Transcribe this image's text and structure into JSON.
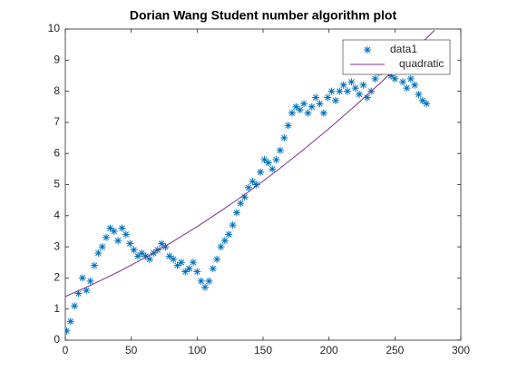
{
  "chart_data": {
    "type": "scatter",
    "title": "Dorian Wang Student number algorithm plot",
    "xlim": [
      0,
      300
    ],
    "xticks": [
      0,
      50,
      100,
      150,
      200,
      250,
      300
    ],
    "ylim": [
      0,
      10
    ],
    "yticks": [
      0,
      1,
      2,
      3,
      4,
      5,
      6,
      7,
      8,
      9,
      10
    ],
    "legend": "top-right",
    "series": [
      {
        "name": "data1",
        "color": "#0072bd",
        "marker": "asterisk",
        "x": [
          1,
          4,
          7,
          10,
          13,
          16,
          19,
          22,
          25,
          28,
          31,
          34,
          37,
          40,
          43,
          46,
          49,
          52,
          55,
          58,
          61,
          64,
          67,
          70,
          73,
          76,
          79,
          82,
          85,
          88,
          91,
          94,
          97,
          100,
          103,
          106,
          109,
          112,
          115,
          118,
          121,
          124,
          127,
          130,
          133,
          136,
          139,
          142,
          145,
          148,
          151,
          154,
          157,
          160,
          163,
          166,
          169,
          172,
          175,
          178,
          181,
          184,
          187,
          190,
          193,
          196,
          199,
          202,
          205,
          208,
          211,
          214,
          217,
          220,
          223,
          226,
          229,
          232,
          235,
          238,
          241,
          244,
          247,
          250,
          253,
          256,
          259,
          262,
          265,
          268,
          271,
          274
        ],
        "values": [
          0.3,
          0.6,
          1.1,
          1.5,
          2.0,
          1.6,
          1.9,
          2.4,
          2.8,
          3.0,
          3.3,
          3.6,
          3.5,
          3.2,
          3.6,
          3.4,
          3.1,
          2.9,
          2.7,
          2.8,
          2.7,
          2.6,
          2.8,
          2.9,
          3.1,
          3.0,
          2.7,
          2.6,
          2.4,
          2.5,
          2.2,
          2.3,
          2.5,
          2.2,
          1.9,
          1.7,
          1.9,
          2.3,
          2.6,
          3.0,
          3.2,
          3.4,
          3.7,
          4.1,
          4.4,
          4.6,
          4.9,
          5.1,
          5.0,
          5.4,
          5.8,
          5.7,
          5.5,
          5.8,
          6.1,
          6.5,
          6.9,
          7.3,
          7.5,
          7.4,
          7.6,
          7.3,
          7.5,
          7.8,
          7.6,
          7.3,
          7.8,
          8.0,
          7.7,
          8.0,
          8.2,
          8.0,
          8.3,
          8.1,
          7.9,
          8.2,
          7.8,
          8.0,
          8.4,
          8.6,
          8.7,
          8.8,
          8.5,
          8.4,
          8.7,
          8.3,
          8.1,
          8.4,
          8.2,
          7.9,
          7.7,
          7.6
        ]
      },
      {
        "name": "quadratic",
        "color": "#7e2f8e",
        "marker": "line",
        "x": [
          0,
          20,
          40,
          60,
          80,
          100,
          120,
          140,
          160,
          180,
          200,
          220,
          240,
          260,
          280
        ],
        "values": [
          1.4,
          1.78,
          2.19,
          2.64,
          3.13,
          3.65,
          4.21,
          4.8,
          5.43,
          6.1,
          6.8,
          7.54,
          8.31,
          9.12,
          9.96
        ]
      }
    ]
  }
}
